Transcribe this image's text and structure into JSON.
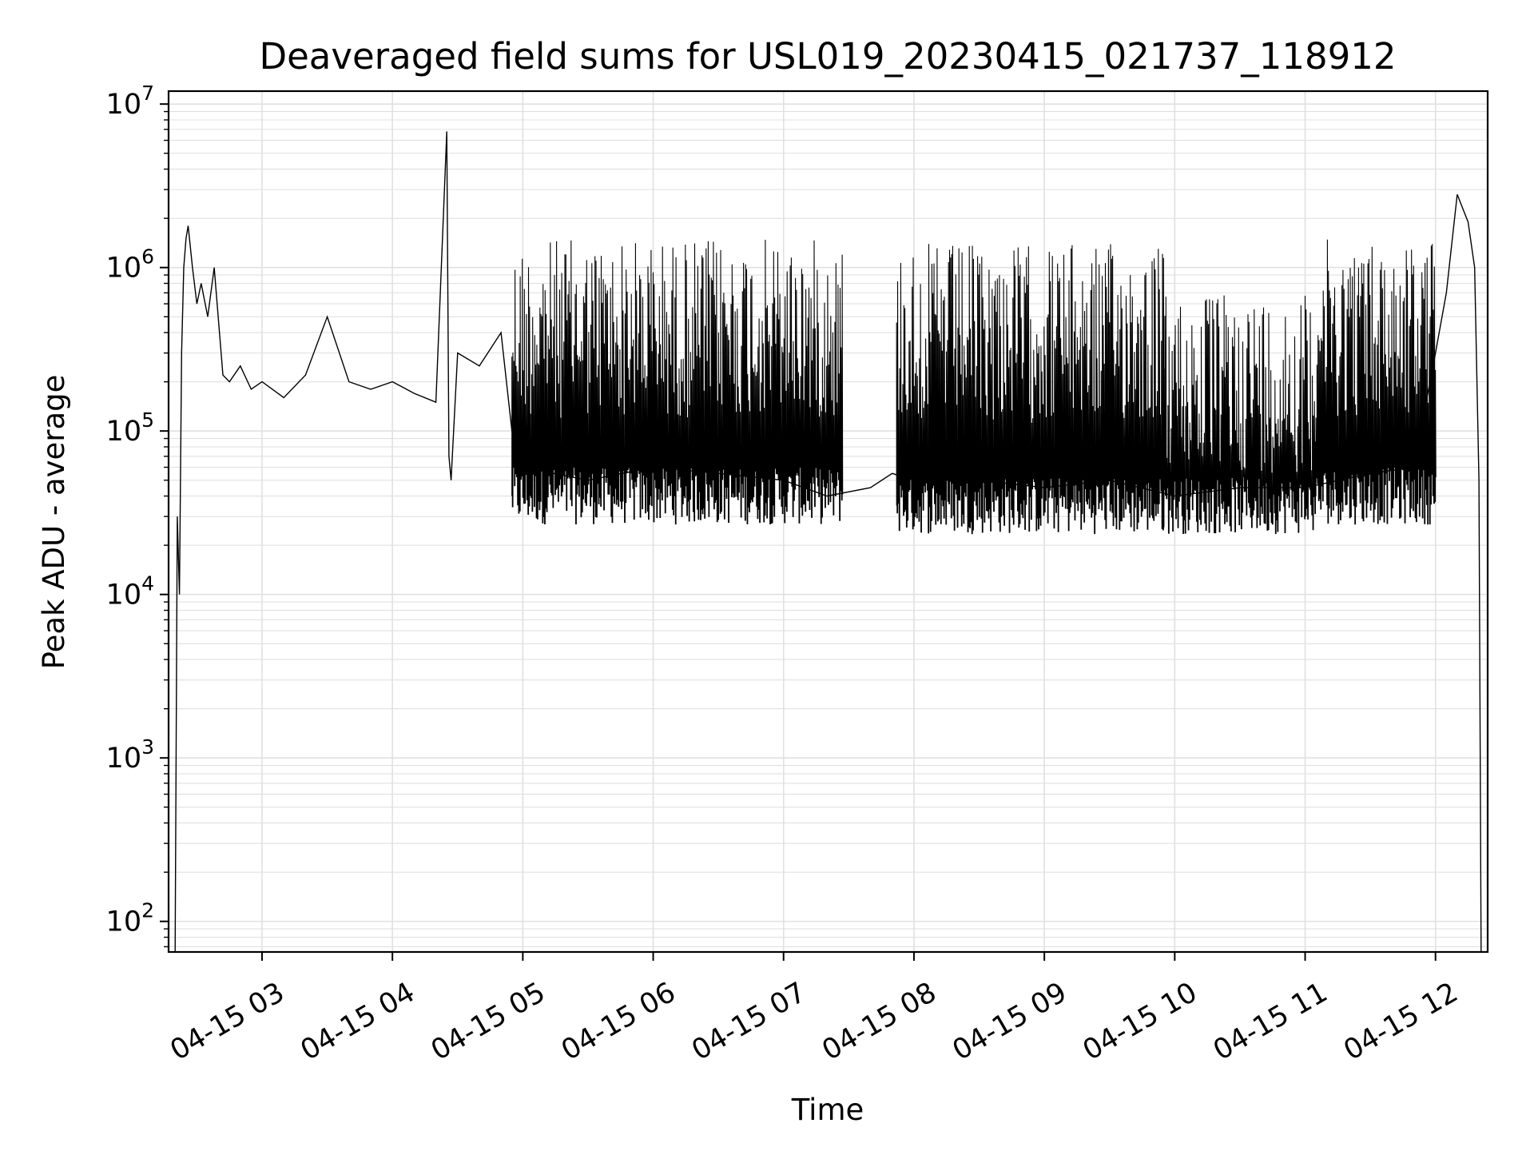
{
  "chart_data": {
    "type": "line",
    "title": "Deaveraged field sums for USL019_20230415_021737_118912",
    "xlabel": "Time",
    "ylabel": "Peak ADU - average",
    "yscale": "log",
    "ylim": [
      65,
      12000000
    ],
    "xlim": [
      "2023-04-15 02:17",
      "2023-04-15 12:24"
    ],
    "grid": true,
    "line_color": "#000000",
    "grid_color": "#e0e0e0",
    "x_ticks": [
      {
        "value": "2023-04-15 03:00",
        "label": "04-15 03"
      },
      {
        "value": "2023-04-15 04:00",
        "label": "04-15 04"
      },
      {
        "value": "2023-04-15 05:00",
        "label": "04-15 05"
      },
      {
        "value": "2023-04-15 06:00",
        "label": "04-15 06"
      },
      {
        "value": "2023-04-15 07:00",
        "label": "04-15 07"
      },
      {
        "value": "2023-04-15 08:00",
        "label": "04-15 08"
      },
      {
        "value": "2023-04-15 09:00",
        "label": "04-15 09"
      },
      {
        "value": "2023-04-15 10:00",
        "label": "04-15 10"
      },
      {
        "value": "2023-04-15 11:00",
        "label": "04-15 11"
      },
      {
        "value": "2023-04-15 12:00",
        "label": "04-15 12"
      }
    ],
    "y_ticks": [
      {
        "value": 100,
        "base": "10",
        "exp": "2"
      },
      {
        "value": 1000,
        "base": "10",
        "exp": "3"
      },
      {
        "value": 10000,
        "base": "10",
        "exp": "4"
      },
      {
        "value": 100000,
        "base": "10",
        "exp": "5"
      },
      {
        "value": 1000000,
        "base": "10",
        "exp": "6"
      },
      {
        "value": 10000000,
        "base": "10",
        "exp": "7"
      }
    ],
    "series": [
      {
        "x": [
          "2023-04-15 02:20",
          "2023-04-15 02:21",
          "2023-04-15 02:22",
          "2023-04-15 02:23",
          "2023-04-15 02:24",
          "2023-04-15 02:25",
          "2023-04-15 02:26",
          "2023-04-15 02:28",
          "2023-04-15 02:30",
          "2023-04-15 02:32",
          "2023-04-15 02:35",
          "2023-04-15 02:38",
          "2023-04-15 02:42",
          "2023-04-15 02:45",
          "2023-04-15 02:50",
          "2023-04-15 02:55",
          "2023-04-15 03:00",
          "2023-04-15 03:10",
          "2023-04-15 03:20",
          "2023-04-15 03:30",
          "2023-04-15 03:40",
          "2023-04-15 03:50",
          "2023-04-15 04:00",
          "2023-04-15 04:10",
          "2023-04-15 04:20",
          "2023-04-15 04:25",
          "2023-04-15 04:26",
          "2023-04-15 04:27",
          "2023-04-15 04:30",
          "2023-04-15 04:40",
          "2023-04-15 04:50",
          "2023-04-15 04:55",
          "2023-04-15 05:00",
          "2023-04-15 05:30",
          "2023-04-15 06:00",
          "2023-04-15 06:30",
          "2023-04-15 07:00",
          "2023-04-15 07:20",
          "2023-04-15 07:40",
          "2023-04-15 07:50",
          "2023-04-15 08:00",
          "2023-04-15 08:30",
          "2023-04-15 09:00",
          "2023-04-15 09:30",
          "2023-04-15 10:00",
          "2023-04-15 10:30",
          "2023-04-15 11:00",
          "2023-04-15 11:30",
          "2023-04-15 11:50",
          "2023-04-15 12:00",
          "2023-04-15 12:05",
          "2023-04-15 12:10",
          "2023-04-15 12:15",
          "2023-04-15 12:18",
          "2023-04-15 12:20",
          "2023-04-15 12:21"
        ],
        "y": [
          65,
          30000,
          10000,
          300000,
          1000000,
          1500000,
          1800000,
          1000000,
          600000,
          800000,
          500000,
          1000000,
          220000,
          200000,
          250000,
          180000,
          200000,
          160000,
          220000,
          500000,
          200000,
          180000,
          200000,
          170000,
          150000,
          6800000,
          70000,
          50000,
          300000,
          250000,
          400000,
          100000,
          60000,
          50000,
          60000,
          55000,
          50000,
          40000,
          45000,
          55000,
          50000,
          50000,
          45000,
          50000,
          40000,
          45000,
          45000,
          55000,
          60000,
          300000,
          700000,
          2800000,
          1900000,
          1000000,
          50000,
          65
        ]
      }
    ],
    "bands": [
      {
        "x_start": "2023-04-15 04:55",
        "x_end": "2023-04-15 07:27",
        "low": 40000,
        "high": 1500000
      },
      {
        "x_start": "2023-04-15 07:52",
        "x_end": "2023-04-15 09:55",
        "low": 35000,
        "high": 1400000
      },
      {
        "x_start": "2023-04-15 09:55",
        "x_end": "2023-04-15 11:05",
        "low": 35000,
        "high": 700000
      },
      {
        "x_start": "2023-04-15 11:05",
        "x_end": "2023-04-15 12:00",
        "low": 40000,
        "high": 1500000
      }
    ]
  }
}
